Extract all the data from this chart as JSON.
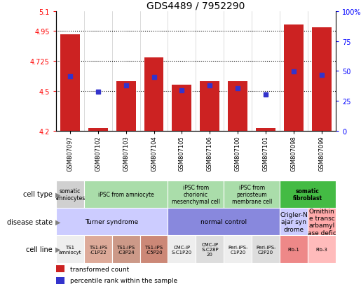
{
  "title": "GDS4489 / 7952290",
  "samples": [
    "GSM807097",
    "GSM807102",
    "GSM807103",
    "GSM807104",
    "GSM807105",
    "GSM807106",
    "GSM807100",
    "GSM807101",
    "GSM807098",
    "GSM807099"
  ],
  "bar_values": [
    4.925,
    4.225,
    4.575,
    4.75,
    4.55,
    4.575,
    4.575,
    4.225,
    5.0,
    4.975
  ],
  "dot_values": [
    4.61,
    4.495,
    4.545,
    4.605,
    4.505,
    4.545,
    4.52,
    4.475,
    4.645,
    4.62
  ],
  "ymin": 4.2,
  "ymax": 5.1,
  "yticks": [
    4.2,
    4.5,
    4.725,
    4.95,
    5.1
  ],
  "ytick_labels": [
    "4.2",
    "4.5",
    "4.725",
    "4.95",
    "5.1"
  ],
  "right_ytick_pcts": [
    0,
    25,
    50,
    75,
    100
  ],
  "right_ytick_labels": [
    "0",
    "25",
    "50",
    "75",
    "100%"
  ],
  "hlines": [
    4.5,
    4.725,
    4.95
  ],
  "bar_color": "#cc2222",
  "dot_color": "#3333cc",
  "cell_type_groups": [
    {
      "label": "somatic\namniocytes",
      "start": 0,
      "end": 1,
      "color": "#d0d0d0",
      "bold": false
    },
    {
      "label": "iPSC from amniocyte",
      "start": 1,
      "end": 4,
      "color": "#aaddaa",
      "bold": false
    },
    {
      "label": "iPSC from\nchorionic\nmesenchymal cell",
      "start": 4,
      "end": 6,
      "color": "#aaddaa",
      "bold": false
    },
    {
      "label": "iPSC from\nperiosteum\nmembrane cell",
      "start": 6,
      "end": 8,
      "color": "#aaddaa",
      "bold": false
    },
    {
      "label": "somatic\nfibroblast",
      "start": 8,
      "end": 10,
      "color": "#44bb44",
      "bold": true
    }
  ],
  "disease_groups": [
    {
      "label": "Turner syndrome",
      "start": 0,
      "end": 4,
      "color": "#ccccff"
    },
    {
      "label": "normal control",
      "start": 4,
      "end": 8,
      "color": "#8888dd"
    },
    {
      "label": "Crigler-N\najar syn\ndrome",
      "start": 8,
      "end": 9,
      "color": "#ccccff"
    },
    {
      "label": "Ornithin\ne transc\narbamyl\nase defic",
      "start": 9,
      "end": 10,
      "color": "#ffaaaa"
    }
  ],
  "cell_line_groups": [
    {
      "label": "TS1\namniocyt",
      "start": 0,
      "end": 1,
      "color": "#eeeeee"
    },
    {
      "label": "TS1-iPS\n-C1P22",
      "start": 1,
      "end": 2,
      "color": "#ddaa99"
    },
    {
      "label": "TS1-iPS\n-C3P24",
      "start": 2,
      "end": 3,
      "color": "#cc9988"
    },
    {
      "label": "TS1-iPS\n-C5P20",
      "start": 3,
      "end": 4,
      "color": "#cc8877"
    },
    {
      "label": "CMC-iP\nS-C1P20",
      "start": 4,
      "end": 5,
      "color": "#eeeeee"
    },
    {
      "label": "CMC-iP\nS-C28P\n20",
      "start": 5,
      "end": 6,
      "color": "#dddddd"
    },
    {
      "label": "Peri-iPS-\nC1P20",
      "start": 6,
      "end": 7,
      "color": "#eeeeee"
    },
    {
      "label": "Peri-iPS-\nC2P20",
      "start": 7,
      "end": 8,
      "color": "#dddddd"
    },
    {
      "label": "Fib-1",
      "start": 8,
      "end": 9,
      "color": "#ee8888"
    },
    {
      "label": "Fib-3",
      "start": 9,
      "end": 10,
      "color": "#ffbbbb"
    }
  ],
  "row_labels": [
    "cell type",
    "disease state",
    "cell line"
  ],
  "legend_items": [
    {
      "color": "#cc2222",
      "label": "transformed count"
    },
    {
      "color": "#3333cc",
      "label": "percentile rank within the sample"
    }
  ]
}
